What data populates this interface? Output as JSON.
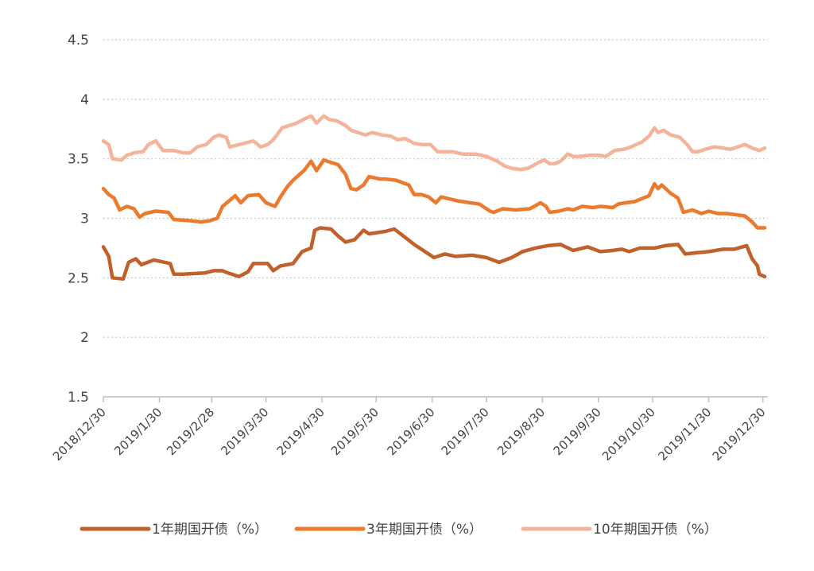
{
  "chart_data": {
    "type": "line",
    "title": "",
    "xlabel": "",
    "ylabel": "",
    "ylim": [
      1.5,
      4.5
    ],
    "yticks": [
      "1.5",
      "2",
      "2.5",
      "3",
      "3.5",
      "4",
      "4.5"
    ],
    "grid": true,
    "legend_position": "bottom",
    "x": [
      "2018/12/30",
      "2019/1/30",
      "2019/2/28",
      "2019/3/30",
      "2019/4/30",
      "2019/5/30",
      "2019/6/30",
      "2019/7/30",
      "2019/8/30",
      "2019/9/30",
      "2019/10/30",
      "2019/11/30",
      "2019/12/30"
    ],
    "series": [
      {
        "name": "1年期国开债（%）",
        "color": "#c0602a",
        "points": [
          [
            "2018-12-30",
            2.76
          ],
          [
            "2019-01-02",
            2.68
          ],
          [
            "2019-01-04",
            2.5
          ],
          [
            "2019-01-10",
            2.49
          ],
          [
            "2019-01-13",
            2.63
          ],
          [
            "2019-01-17",
            2.66
          ],
          [
            "2019-01-20",
            2.61
          ],
          [
            "2019-01-27",
            2.65
          ],
          [
            "2019-02-05",
            2.62
          ],
          [
            "2019-02-07",
            2.53
          ],
          [
            "2019-02-12",
            2.53
          ],
          [
            "2019-02-24",
            2.54
          ],
          [
            "2019-03-01",
            2.56
          ],
          [
            "2019-03-06",
            2.56
          ],
          [
            "2019-03-09",
            2.54
          ],
          [
            "2019-03-15",
            2.51
          ],
          [
            "2019-03-20",
            2.55
          ],
          [
            "2019-03-23",
            2.62
          ],
          [
            "2019-03-31",
            2.62
          ],
          [
            "2019-04-03",
            2.56
          ],
          [
            "2019-04-07",
            2.6
          ],
          [
            "2019-04-14",
            2.62
          ],
          [
            "2019-04-19",
            2.72
          ],
          [
            "2019-04-24",
            2.75
          ],
          [
            "2019-04-26",
            2.9
          ],
          [
            "2019-04-29",
            2.92
          ],
          [
            "2019-05-05",
            2.91
          ],
          [
            "2019-05-09",
            2.85
          ],
          [
            "2019-05-13",
            2.8
          ],
          [
            "2019-05-18",
            2.82
          ],
          [
            "2019-05-23",
            2.9
          ],
          [
            "2019-05-26",
            2.87
          ],
          [
            "2019-06-04",
            2.89
          ],
          [
            "2019-06-09",
            2.91
          ],
          [
            "2019-06-15",
            2.84
          ],
          [
            "2019-06-20",
            2.78
          ],
          [
            "2019-06-26",
            2.72
          ],
          [
            "2019-06-31",
            2.67
          ],
          [
            "2019-07-07",
            2.7
          ],
          [
            "2019-07-13",
            2.68
          ],
          [
            "2019-07-22",
            2.69
          ],
          [
            "2019-07-30",
            2.67
          ],
          [
            "2019-08-06",
            2.63
          ],
          [
            "2019-08-13",
            2.67
          ],
          [
            "2019-08-19",
            2.72
          ],
          [
            "2019-08-26",
            2.75
          ],
          [
            "2019-09-02",
            2.77
          ],
          [
            "2019-09-09",
            2.78
          ],
          [
            "2019-09-16",
            2.73
          ],
          [
            "2019-09-24",
            2.76
          ],
          [
            "2019-10-01",
            2.72
          ],
          [
            "2019-10-08",
            2.73
          ],
          [
            "2019-10-13",
            2.74
          ],
          [
            "2019-10-17",
            2.72
          ],
          [
            "2019-10-23",
            2.75
          ],
          [
            "2019-10-31",
            2.75
          ],
          [
            "2019-11-06",
            2.77
          ],
          [
            "2019-11-13",
            2.78
          ],
          [
            "2019-11-17",
            2.7
          ],
          [
            "2019-11-23",
            2.71
          ],
          [
            "2019-11-30",
            2.72
          ],
          [
            "2019-12-08",
            2.74
          ],
          [
            "2019-12-14",
            2.74
          ],
          [
            "2019-12-21",
            2.77
          ],
          [
            "2019-12-24",
            2.66
          ],
          [
            "2019-12-27",
            2.6
          ],
          [
            "2019-12-28",
            2.53
          ],
          [
            "2019-12-31",
            2.51
          ]
        ]
      },
      {
        "name": "3年期国开债（%）",
        "color": "#ec7a2e",
        "points": [
          [
            "2018-12-30",
            3.25
          ],
          [
            "2019-01-02",
            3.2
          ],
          [
            "2019-01-05",
            3.17
          ],
          [
            "2019-01-08",
            3.07
          ],
          [
            "2019-01-12",
            3.1
          ],
          [
            "2019-01-16",
            3.08
          ],
          [
            "2019-01-19",
            3.01
          ],
          [
            "2019-01-22",
            3.04
          ],
          [
            "2019-01-28",
            3.06
          ],
          [
            "2019-02-04",
            3.05
          ],
          [
            "2019-02-07",
            2.99
          ],
          [
            "2019-02-16",
            2.98
          ],
          [
            "2019-02-22",
            2.97
          ],
          [
            "2019-02-27",
            2.98
          ],
          [
            "2019-03-03",
            3.0
          ],
          [
            "2019-03-06",
            3.1
          ],
          [
            "2019-03-13",
            3.19
          ],
          [
            "2019-03-16",
            3.13
          ],
          [
            "2019-03-20",
            3.19
          ],
          [
            "2019-03-26",
            3.2
          ],
          [
            "2019-03-30",
            3.13
          ],
          [
            "2019-04-04",
            3.1
          ],
          [
            "2019-04-07",
            3.18
          ],
          [
            "2019-04-11",
            3.27
          ],
          [
            "2019-04-14",
            3.32
          ],
          [
            "2019-04-20",
            3.4
          ],
          [
            "2019-04-24",
            3.48
          ],
          [
            "2019-04-27",
            3.4
          ],
          [
            "2019-05-01",
            3.49
          ],
          [
            "2019-05-05",
            3.47
          ],
          [
            "2019-05-09",
            3.45
          ],
          [
            "2019-05-13",
            3.37
          ],
          [
            "2019-05-16",
            3.25
          ],
          [
            "2019-05-19",
            3.24
          ],
          [
            "2019-05-23",
            3.28
          ],
          [
            "2019-05-26",
            3.35
          ],
          [
            "2019-06-01",
            3.33
          ],
          [
            "2019-06-04",
            3.33
          ],
          [
            "2019-06-10",
            3.32
          ],
          [
            "2019-06-17",
            3.28
          ],
          [
            "2019-06-20",
            3.2
          ],
          [
            "2019-06-24",
            3.2
          ],
          [
            "2019-06-28",
            3.18
          ],
          [
            "2019-07-02",
            3.13
          ],
          [
            "2019-07-05",
            3.18
          ],
          [
            "2019-07-13",
            3.15
          ],
          [
            "2019-07-21",
            3.13
          ],
          [
            "2019-07-26",
            3.12
          ],
          [
            "2019-08-01",
            3.06
          ],
          [
            "2019-08-03",
            3.05
          ],
          [
            "2019-08-08",
            3.08
          ],
          [
            "2019-08-15",
            3.07
          ],
          [
            "2019-08-23",
            3.08
          ],
          [
            "2019-08-29",
            3.13
          ],
          [
            "2019-09-01",
            3.1
          ],
          [
            "2019-09-03",
            3.05
          ],
          [
            "2019-09-08",
            3.06
          ],
          [
            "2019-09-13",
            3.08
          ],
          [
            "2019-09-16",
            3.07
          ],
          [
            "2019-09-21",
            3.1
          ],
          [
            "2019-09-27",
            3.09
          ],
          [
            "2019-10-01",
            3.1
          ],
          [
            "2019-10-08",
            3.09
          ],
          [
            "2019-10-11",
            3.12
          ],
          [
            "2019-10-15",
            3.13
          ],
          [
            "2019-10-20",
            3.14
          ],
          [
            "2019-10-28",
            3.19
          ],
          [
            "2019-10-31",
            3.29
          ],
          [
            "2019-11-02",
            3.25
          ],
          [
            "2019-11-04",
            3.28
          ],
          [
            "2019-11-09",
            3.21
          ],
          [
            "2019-11-13",
            3.17
          ],
          [
            "2019-11-16",
            3.05
          ],
          [
            "2019-11-21",
            3.07
          ],
          [
            "2019-11-26",
            3.04
          ],
          [
            "2019-11-30",
            3.06
          ],
          [
            "2019-12-05",
            3.04
          ],
          [
            "2019-12-10",
            3.04
          ],
          [
            "2019-12-15",
            3.03
          ],
          [
            "2019-12-20",
            3.02
          ],
          [
            "2019-12-24",
            2.97
          ],
          [
            "2019-12-27",
            2.92
          ],
          [
            "2019-12-31",
            2.92
          ]
        ]
      },
      {
        "name": "10年期国开债（%）",
        "color": "#f4b49a",
        "points": [
          [
            "2018-12-30",
            3.65
          ],
          [
            "2019-01-02",
            3.62
          ],
          [
            "2019-01-04",
            3.5
          ],
          [
            "2019-01-09",
            3.49
          ],
          [
            "2019-01-12",
            3.53
          ],
          [
            "2019-01-16",
            3.55
          ],
          [
            "2019-01-21",
            3.56
          ],
          [
            "2019-01-24",
            3.62
          ],
          [
            "2019-01-28",
            3.65
          ],
          [
            "2019-02-01",
            3.57
          ],
          [
            "2019-02-07",
            3.57
          ],
          [
            "2019-02-12",
            3.55
          ],
          [
            "2019-02-16",
            3.55
          ],
          [
            "2019-02-20",
            3.6
          ],
          [
            "2019-02-25",
            3.62
          ],
          [
            "2019-03-01",
            3.68
          ],
          [
            "2019-03-04",
            3.7
          ],
          [
            "2019-03-08",
            3.68
          ],
          [
            "2019-03-10",
            3.6
          ],
          [
            "2019-03-18",
            3.63
          ],
          [
            "2019-03-23",
            3.65
          ],
          [
            "2019-03-27",
            3.6
          ],
          [
            "2019-03-31",
            3.62
          ],
          [
            "2019-04-03",
            3.66
          ],
          [
            "2019-04-08",
            3.76
          ],
          [
            "2019-04-12",
            3.78
          ],
          [
            "2019-04-16",
            3.8
          ],
          [
            "2019-04-21",
            3.84
          ],
          [
            "2019-04-24",
            3.86
          ],
          [
            "2019-04-27",
            3.8
          ],
          [
            "2019-05-01",
            3.86
          ],
          [
            "2019-05-04",
            3.83
          ],
          [
            "2019-05-08",
            3.82
          ],
          [
            "2019-05-13",
            3.78
          ],
          [
            "2019-05-16",
            3.74
          ],
          [
            "2019-05-20",
            3.72
          ],
          [
            "2019-05-24",
            3.7
          ],
          [
            "2019-05-28",
            3.72
          ],
          [
            "2019-06-02",
            3.7
          ],
          [
            "2019-06-07",
            3.69
          ],
          [
            "2019-06-11",
            3.66
          ],
          [
            "2019-06-15",
            3.67
          ],
          [
            "2019-06-20",
            3.63
          ],
          [
            "2019-06-24",
            3.62
          ],
          [
            "2019-06-29",
            3.62
          ],
          [
            "2019-07-03",
            3.56
          ],
          [
            "2019-07-11",
            3.56
          ],
          [
            "2019-07-17",
            3.54
          ],
          [
            "2019-07-24",
            3.54
          ],
          [
            "2019-07-30",
            3.52
          ],
          [
            "2019-08-05",
            3.48
          ],
          [
            "2019-08-09",
            3.44
          ],
          [
            "2019-08-13",
            3.42
          ],
          [
            "2019-08-18",
            3.41
          ],
          [
            "2019-08-22",
            3.42
          ],
          [
            "2019-08-28",
            3.47
          ],
          [
            "2019-08-31",
            3.49
          ],
          [
            "2019-09-03",
            3.46
          ],
          [
            "2019-09-06",
            3.46
          ],
          [
            "2019-09-09",
            3.48
          ],
          [
            "2019-09-13",
            3.54
          ],
          [
            "2019-09-16",
            3.52
          ],
          [
            "2019-09-20",
            3.52
          ],
          [
            "2019-09-25",
            3.53
          ],
          [
            "2019-09-30",
            3.53
          ],
          [
            "2019-10-04",
            3.52
          ],
          [
            "2019-10-09",
            3.57
          ],
          [
            "2019-10-14",
            3.58
          ],
          [
            "2019-10-18",
            3.6
          ],
          [
            "2019-10-24",
            3.64
          ],
          [
            "2019-10-28",
            3.69
          ],
          [
            "2019-10-31",
            3.76
          ],
          [
            "2019-11-02",
            3.72
          ],
          [
            "2019-11-05",
            3.74
          ],
          [
            "2019-11-09",
            3.7
          ],
          [
            "2019-11-14",
            3.68
          ],
          [
            "2019-11-18",
            3.62
          ],
          [
            "2019-11-21",
            3.56
          ],
          [
            "2019-11-24",
            3.56
          ],
          [
            "2019-11-28",
            3.58
          ],
          [
            "2019-12-03",
            3.6
          ],
          [
            "2019-12-08",
            3.59
          ],
          [
            "2019-12-12",
            3.58
          ],
          [
            "2019-12-16",
            3.6
          ],
          [
            "2019-12-20",
            3.62
          ],
          [
            "2019-12-24",
            3.59
          ],
          [
            "2019-12-28",
            3.57
          ],
          [
            "2019-12-31",
            3.59
          ]
        ]
      }
    ]
  }
}
